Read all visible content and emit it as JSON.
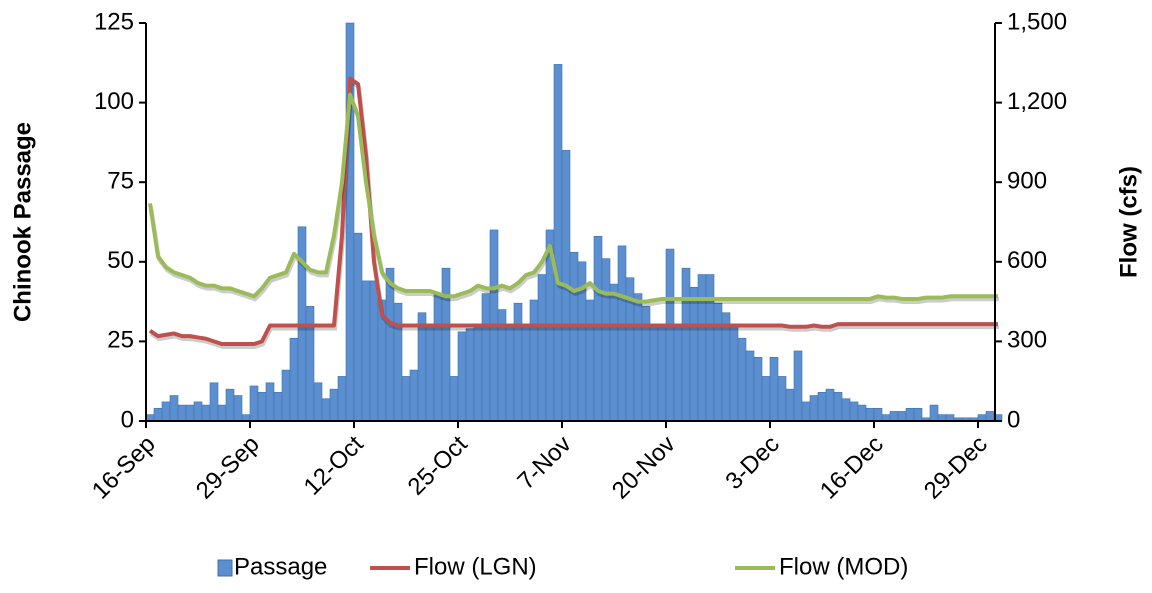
{
  "chart_data": {
    "type": "bar",
    "y_label": "Chinook Passage",
    "y2_label": "Flow (cfs)",
    "categories": [
      "16-Sep",
      null,
      null,
      null,
      null,
      null,
      null,
      null,
      null,
      null,
      null,
      null,
      null,
      "29-Sep",
      null,
      null,
      null,
      null,
      null,
      null,
      null,
      null,
      null,
      null,
      null,
      null,
      "12-Oct",
      null,
      null,
      null,
      null,
      null,
      null,
      null,
      null,
      null,
      null,
      null,
      null,
      "25-Oct",
      null,
      null,
      null,
      null,
      null,
      null,
      null,
      null,
      null,
      null,
      null,
      null,
      "7-Nov",
      null,
      null,
      null,
      null,
      null,
      null,
      null,
      null,
      null,
      null,
      null,
      null,
      "20-Nov",
      null,
      null,
      null,
      null,
      null,
      null,
      null,
      null,
      null,
      null,
      null,
      null,
      "3-Dec",
      null,
      null,
      null,
      null,
      null,
      null,
      null,
      null,
      null,
      null,
      null,
      null,
      "16-Dec",
      null,
      null,
      null,
      null,
      null,
      null,
      null,
      null,
      null,
      null,
      null,
      null,
      "29-Dec",
      null,
      null
    ],
    "series": [
      {
        "name": "Passage",
        "type": "bar",
        "color": "#5b8fd0",
        "values": [
          2,
          4,
          6,
          8,
          5,
          5,
          6,
          5,
          12,
          5,
          10,
          8,
          2,
          11,
          9,
          12,
          9,
          16,
          26,
          61,
          36,
          12,
          7,
          10,
          14,
          125,
          59,
          44,
          44,
          38,
          48,
          37,
          14,
          16,
          34,
          30,
          40,
          48,
          14,
          28,
          29,
          30,
          40,
          60,
          35,
          30,
          37,
          30,
          38,
          46,
          60,
          112,
          85,
          53,
          50,
          38,
          58,
          51,
          43,
          55,
          45,
          40,
          36,
          30,
          30,
          54,
          30,
          48,
          42,
          46,
          46,
          37,
          34,
          30,
          26,
          22,
          20,
          14,
          20,
          14,
          10,
          22,
          6,
          8,
          9,
          10,
          9,
          7,
          6,
          5,
          4,
          4,
          2,
          3,
          3,
          4,
          4,
          1,
          5,
          2,
          2,
          1,
          1,
          1,
          2,
          3,
          2
        ]
      },
      {
        "name": "Flow (LGN)",
        "type": "line",
        "axis": "y2",
        "color": "#c0504d",
        "values": [
          340,
          320,
          325,
          330,
          320,
          320,
          315,
          310,
          300,
          290,
          290,
          290,
          290,
          290,
          300,
          360,
          360,
          360,
          360,
          360,
          360,
          360,
          360,
          360,
          700,
          1290,
          1270,
          1000,
          600,
          400,
          370,
          360,
          360,
          360,
          360,
          360,
          360,
          360,
          360,
          360,
          360,
          360,
          360,
          360,
          360,
          360,
          360,
          360,
          360,
          360,
          360,
          360,
          360,
          360,
          360,
          360,
          360,
          360,
          360,
          360,
          360,
          360,
          360,
          360,
          360,
          360,
          360,
          360,
          360,
          360,
          360,
          360,
          360,
          360,
          360,
          360,
          360,
          360,
          360,
          360,
          355,
          355,
          355,
          360,
          355,
          355,
          365,
          365,
          365,
          365,
          365,
          365,
          365,
          365,
          365,
          365,
          365,
          365,
          365,
          365,
          365,
          365,
          365,
          365,
          365,
          365,
          365
        ]
      },
      {
        "name": "Flow (MOD)",
        "type": "line",
        "axis": "y2",
        "color": "#9bbb59",
        "values": [
          820,
          620,
          580,
          560,
          550,
          540,
          520,
          510,
          510,
          500,
          500,
          490,
          480,
          470,
          500,
          540,
          550,
          560,
          630,
          600,
          570,
          560,
          560,
          700,
          900,
          1230,
          1150,
          900,
          700,
          560,
          520,
          500,
          490,
          490,
          490,
          490,
          480,
          470,
          470,
          480,
          490,
          510,
          500,
          500,
          510,
          500,
          520,
          550,
          560,
          600,
          660,
          520,
          510,
          490,
          500,
          520,
          490,
          480,
          480,
          470,
          460,
          450,
          450,
          455,
          460,
          460,
          460,
          460,
          460,
          460,
          460,
          460,
          460,
          460,
          460,
          460,
          460,
          460,
          460,
          460,
          460,
          460,
          460,
          460,
          460,
          460,
          460,
          460,
          460,
          460,
          460,
          470,
          465,
          465,
          460,
          460,
          460,
          465,
          465,
          465,
          470,
          470,
          470,
          470,
          470,
          470,
          470
        ]
      }
    ],
    "ylim": [
      0,
      125
    ],
    "yticks": [
      0,
      25,
      50,
      75,
      100,
      125
    ],
    "y2lim": [
      0,
      1500
    ],
    "y2ticks": [
      0,
      300,
      600,
      900,
      {
        "value": 1200,
        "label": "1,200"
      },
      {
        "value": 1500,
        "label": "1,500"
      }
    ],
    "legend": "bottom"
  }
}
